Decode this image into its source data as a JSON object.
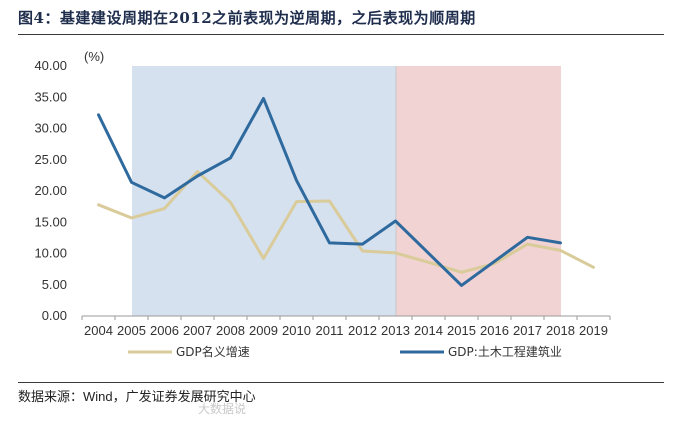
{
  "header": {
    "title": "图4：基建建设周期在2012之前表现为逆周期，之后表现为顺周期"
  },
  "footer": {
    "source": "数据来源：Wind，广发证券发展研究中心",
    "watermark": "大数据说"
  },
  "chart_data": {
    "type": "line",
    "x": [
      "2004",
      "2005",
      "2006",
      "2007",
      "2008",
      "2009",
      "2010",
      "2011",
      "2012",
      "2013",
      "2014",
      "2015",
      "2016",
      "2017",
      "2018",
      "2019"
    ],
    "ylabel": "(%)",
    "ylim": [
      0,
      40
    ],
    "yticks": [
      "0.00",
      "5.00",
      "10.00",
      "15.00",
      "20.00",
      "25.00",
      "30.00",
      "35.00",
      "40.00"
    ],
    "series": [
      {
        "name": "GDP名义增速",
        "color": "#d9cb9a",
        "values": [
          17.8,
          15.7,
          17.2,
          23.1,
          18.2,
          9.2,
          18.3,
          18.4,
          10.4,
          10.1,
          8.6,
          7.0,
          8.4,
          11.5,
          10.5,
          7.8
        ]
      },
      {
        "name": "GDP:土木工程建筑业",
        "color": "#2f6a9e",
        "values": [
          32.2,
          21.4,
          18.9,
          22.4,
          25.3,
          34.8,
          21.7,
          11.7,
          11.5,
          15.2,
          null,
          4.9,
          null,
          12.6,
          11.7,
          null
        ]
      }
    ],
    "shaded_regions": [
      {
        "from": "2005",
        "to": "2013",
        "color": "#d6e1ef"
      },
      {
        "from": "2013",
        "to": "2018",
        "color": "#f2d3d3"
      }
    ],
    "legend_position": "bottom",
    "grid": false
  }
}
